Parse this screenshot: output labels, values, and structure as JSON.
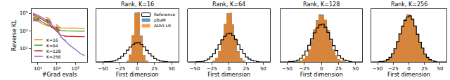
{
  "chart_data": [
    {
      "type": "line",
      "xlabel": "#Grad evals",
      "ylabel": "Reverse KL",
      "log": true,
      "grid": false,
      "legend": "lower left",
      "xlim": [
        2,
        2000000
      ],
      "ylim": [
        0.3,
        300000
      ],
      "xticks": [
        {
          "value": 10,
          "label": "10¹"
        },
        {
          "value": 1000,
          "label": "10³"
        },
        {
          "value": 100000,
          "label": "10⁵"
        }
      ],
      "yticks": [
        {
          "value": 10,
          "label": "10¹"
        },
        {
          "value": 1000,
          "label": "10³"
        },
        {
          "value": 100000,
          "label": "10⁵"
        }
      ],
      "series": [
        {
          "name": "K=16",
          "color": "#ff7f0e",
          "line_style": "solid",
          "x": [
            3,
            10,
            30,
            100,
            300,
            1000,
            3000,
            10000,
            30000,
            100000,
            300000,
            1000000
          ],
          "values": [
            30000,
            12000,
            6000,
            4000,
            3000,
            2500,
            2200,
            2100,
            2050,
            2000,
            2000,
            2000
          ]
        },
        {
          "name": "K=64",
          "color": "#2ca02c",
          "line_style": "solid",
          "x": [
            3,
            10,
            30,
            100,
            300,
            1000,
            3000,
            10000,
            30000,
            100000,
            300000,
            1000000
          ],
          "values": [
            60000,
            25000,
            10000,
            5000,
            2500,
            1500,
            1100,
            1000,
            950,
            930,
            920,
            920
          ]
        },
        {
          "name": "K=128",
          "color": "#d62728",
          "line_style": "solid",
          "x": [
            3,
            10,
            30,
            100,
            300,
            1000,
            3000,
            10000,
            30000,
            100000,
            300000,
            1000000
          ],
          "values": [
            80000,
            40000,
            20000,
            9000,
            3000,
            800,
            300,
            250,
            230,
            220,
            220,
            220
          ]
        },
        {
          "name": "K=256",
          "color": "#9467bd",
          "line_style": "solid",
          "x": [
            3,
            10,
            30,
            100,
            300,
            1000,
            3000,
            10000,
            30000,
            100000,
            300000,
            1000000
          ],
          "values": [
            100000,
            60000,
            30000,
            15000,
            5000,
            1200,
            200,
            60,
            20,
            8,
            3,
            1.5
          ]
        },
        {
          "color": "#ff7f0e",
          "line_style": "dashed",
          "x": [
            3,
            10,
            30,
            100,
            300,
            1000,
            2000,
            3000,
            10000
          ],
          "values": [
            50000,
            45000,
            40000,
            30000,
            15000,
            5000,
            2500,
            2100,
            2000
          ]
        },
        {
          "color": "#2ca02c",
          "line_style": "dashed",
          "x": [
            3,
            10,
            30,
            100,
            300,
            1000,
            2000,
            3000,
            10000
          ],
          "values": [
            30000,
            28000,
            25000,
            20000,
            10000,
            3000,
            1200,
            1000,
            950
          ]
        },
        {
          "color": "#d62728",
          "line_style": "dashed",
          "x": [
            3,
            10,
            30,
            100,
            300,
            1000,
            2000,
            3000,
            10000
          ],
          "values": [
            20000,
            19000,
            17000,
            14000,
            8000,
            2000,
            600,
            300,
            250
          ]
        },
        {
          "color": "#9467bd",
          "line_style": "dashed",
          "x": [
            3,
            10,
            30,
            100,
            300,
            1000,
            2000,
            3000,
            10000
          ],
          "values": [
            15000,
            14000,
            13000,
            11000,
            7000,
            1500,
            400,
            150,
            80
          ]
        }
      ]
    },
    {
      "type": "histogram",
      "title": "Rank, K=16",
      "xlabel": "First dimension",
      "tick_labels": "x",
      "legend": "upper right",
      "xlim": [
        -60,
        60
      ],
      "ylim": [
        0,
        275
      ],
      "xticks": [
        {
          "value": -50,
          "label": "−50"
        },
        {
          "value": -25,
          "label": "−25"
        },
        0,
        25,
        50
      ],
      "bins": [
        -60,
        -56,
        -52,
        -48,
        -44,
        -40,
        -36,
        -32,
        -28,
        -24,
        -20,
        -16,
        -12,
        -8,
        -4,
        0,
        4,
        8,
        12,
        16,
        20,
        24,
        28,
        32,
        36,
        40,
        44,
        48,
        52,
        56,
        60
      ],
      "series": [
        {
          "name": "Reference",
          "color": "#000000",
          "line_style": "step",
          "values": [
            0,
            0,
            0,
            1,
            1,
            2,
            5,
            10,
            18,
            29,
            44,
            61,
            77,
            90,
            98,
            100,
            92,
            78,
            60,
            43,
            30,
            17,
            10,
            5,
            3,
            1,
            0,
            0,
            0,
            0
          ]
        },
        {
          "name": "pBaM",
          "color": "#1f77b4",
          "values": [
            0,
            0,
            0,
            0,
            0,
            0,
            0,
            0,
            0,
            0,
            0,
            6,
            38,
            136,
            258,
            258,
            136,
            38,
            6,
            0,
            0,
            0,
            0,
            0,
            0,
            0,
            0,
            0,
            0,
            0
          ]
        },
        {
          "name": "ADVI-LR",
          "color": "#ff7f0e",
          "values": [
            0,
            0,
            0,
            0,
            0,
            0,
            0,
            0,
            0,
            0,
            0,
            5,
            40,
            140,
            250,
            262,
            132,
            36,
            7,
            0,
            0,
            0,
            0,
            0,
            0,
            0,
            0,
            0,
            0,
            0
          ]
        }
      ]
    },
    {
      "type": "histogram",
      "title": "Rank, K=64",
      "xlabel": "First dimension",
      "tick_labels": "x",
      "xlim": [
        -60,
        60
      ],
      "ylim": [
        0,
        185
      ],
      "xticks": [
        {
          "value": -50,
          "label": "−50"
        },
        {
          "value": -25,
          "label": "−25"
        },
        0,
        25,
        50
      ],
      "bins": [
        -60,
        -56,
        -52,
        -48,
        -44,
        -40,
        -36,
        -32,
        -28,
        -24,
        -20,
        -16,
        -12,
        -8,
        -4,
        0,
        4,
        8,
        12,
        16,
        20,
        24,
        28,
        32,
        36,
        40,
        44,
        48,
        52,
        56,
        60
      ],
      "series": [
        {
          "name": "Reference",
          "color": "#000000",
          "line_style": "step",
          "values": [
            0,
            0,
            0,
            1,
            1,
            2,
            5,
            10,
            18,
            29,
            44,
            61,
            77,
            90,
            98,
            100,
            92,
            78,
            60,
            43,
            30,
            17,
            10,
            5,
            3,
            1,
            0,
            0,
            0,
            0
          ]
        },
        {
          "name": "pBaM",
          "color": "#1f77b4",
          "values": [
            0,
            0,
            0,
            0,
            0,
            0,
            0,
            0,
            1,
            4,
            14,
            38,
            80,
            132,
            170,
            170,
            132,
            80,
            38,
            14,
            4,
            1,
            0,
            0,
            0,
            0,
            0,
            0,
            0,
            0
          ]
        },
        {
          "name": "ADVI-LR",
          "color": "#ff7f0e",
          "values": [
            0,
            0,
            0,
            0,
            0,
            0,
            0,
            0,
            1,
            5,
            13,
            40,
            78,
            135,
            168,
            172,
            128,
            82,
            36,
            15,
            3,
            1,
            0,
            0,
            0,
            0,
            0,
            0,
            0,
            0
          ]
        }
      ]
    },
    {
      "type": "histogram",
      "title": "Rank, K=128",
      "xlabel": "First dimension",
      "tick_labels": "x",
      "xlim": [
        -60,
        60
      ],
      "ylim": [
        0,
        140
      ],
      "xticks": [
        {
          "value": -50,
          "label": "−50"
        },
        {
          "value": -25,
          "label": "−25"
        },
        0,
        25,
        50
      ],
      "bins": [
        -60,
        -56,
        -52,
        -48,
        -44,
        -40,
        -36,
        -32,
        -28,
        -24,
        -20,
        -16,
        -12,
        -8,
        -4,
        0,
        4,
        8,
        12,
        16,
        20,
        24,
        28,
        32,
        36,
        40,
        44,
        48,
        52,
        56,
        60
      ],
      "series": [
        {
          "name": "Reference",
          "color": "#000000",
          "line_style": "step",
          "values": [
            0,
            0,
            0,
            1,
            1,
            2,
            5,
            10,
            18,
            29,
            44,
            61,
            77,
            90,
            98,
            100,
            92,
            78,
            60,
            43,
            30,
            17,
            10,
            5,
            3,
            1,
            0,
            0,
            0,
            0
          ]
        },
        {
          "name": "pBaM",
          "color": "#1f77b4",
          "values": [
            0,
            0,
            0,
            0,
            0,
            0,
            1,
            3,
            8,
            17,
            33,
            57,
            84,
            110,
            125,
            125,
            110,
            84,
            57,
            33,
            17,
            8,
            3,
            1,
            0,
            0,
            0,
            0,
            0,
            0
          ]
        },
        {
          "name": "ADVI-LR",
          "color": "#ff7f0e",
          "values": [
            0,
            0,
            0,
            0,
            0,
            0,
            1,
            3,
            9,
            16,
            34,
            55,
            86,
            108,
            127,
            122,
            112,
            82,
            58,
            31,
            18,
            7,
            3,
            1,
            0,
            0,
            0,
            0,
            0,
            0
          ]
        }
      ]
    },
    {
      "type": "histogram",
      "title": "Rank, K=256",
      "xlabel": "First dimension",
      "tick_labels": "x",
      "xlim": [
        -60,
        60
      ],
      "ylim": [
        0,
        115
      ],
      "xticks": [
        {
          "value": -50,
          "label": "−50"
        },
        {
          "value": -25,
          "label": "−25"
        },
        0,
        25,
        50
      ],
      "bins": [
        -60,
        -56,
        -52,
        -48,
        -44,
        -40,
        -36,
        -32,
        -28,
        -24,
        -20,
        -16,
        -12,
        -8,
        -4,
        0,
        4,
        8,
        12,
        16,
        20,
        24,
        28,
        32,
        36,
        40,
        44,
        48,
        52,
        56,
        60
      ],
      "series": [
        {
          "name": "Reference",
          "color": "#000000",
          "line_style": "step",
          "values": [
            0,
            0,
            0,
            1,
            1,
            2,
            5,
            10,
            18,
            29,
            44,
            61,
            77,
            90,
            98,
            100,
            92,
            78,
            60,
            43,
            30,
            17,
            10,
            5,
            3,
            1,
            0,
            0,
            0,
            0
          ]
        },
        {
          "name": "pBaM",
          "color": "#1f77b4",
          "values": [
            0,
            0,
            0,
            0,
            1,
            2,
            4,
            9,
            16,
            28,
            43,
            61,
            79,
            94,
            103,
            103,
            94,
            79,
            61,
            43,
            28,
            16,
            9,
            4,
            2,
            1,
            0,
            0,
            0,
            0
          ]
        },
        {
          "name": "ADVI-LR",
          "color": "#ff7f0e",
          "values": [
            0,
            0,
            0,
            0,
            1,
            2,
            5,
            8,
            17,
            27,
            44,
            60,
            80,
            92,
            105,
            101,
            96,
            77,
            62,
            42,
            29,
            15,
            9,
            4,
            2,
            1,
            0,
            0,
            0,
            0
          ]
        }
      ]
    }
  ]
}
